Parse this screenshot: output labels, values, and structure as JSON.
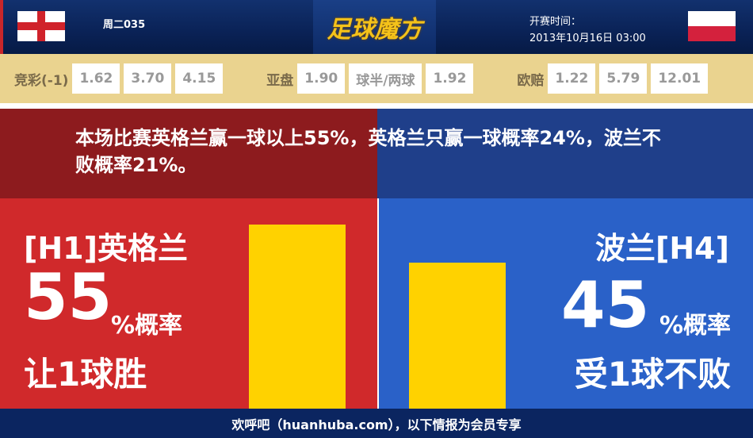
{
  "header": {
    "match_no": "周二035",
    "logo": "足球魔方",
    "time_label": "开赛时间：",
    "time_value": "2013年10月16日 03:00",
    "home_flag": "england-flag",
    "away_flag": "poland-flag"
  },
  "odds": {
    "jc_label": "竞彩(-1)",
    "jc": [
      "1.62",
      "3.70",
      "4.15"
    ],
    "asian_label": "亚盘",
    "asian": [
      "1.90",
      "球半/两球",
      "1.92"
    ],
    "euro_label": "欧赔",
    "euro": [
      "1.22",
      "5.79",
      "12.01"
    ]
  },
  "analysis": "本场比赛英格兰赢一球以上55%，英格兰只赢一球概率24%，波兰不败概率21%。",
  "home": {
    "team": "[H1]英格兰",
    "pct": "55",
    "pct_suffix": "%概率",
    "outcome": "让1球胜",
    "value": 55,
    "color": "#d0292b"
  },
  "away": {
    "team": "波兰[H4]",
    "pct": "45",
    "pct_suffix": "%概率",
    "outcome": "受1球不败",
    "value": 45,
    "color": "#2a61c8"
  },
  "footer": "欢呼吧（huanhuba.com），以下情报为会员专享"
}
